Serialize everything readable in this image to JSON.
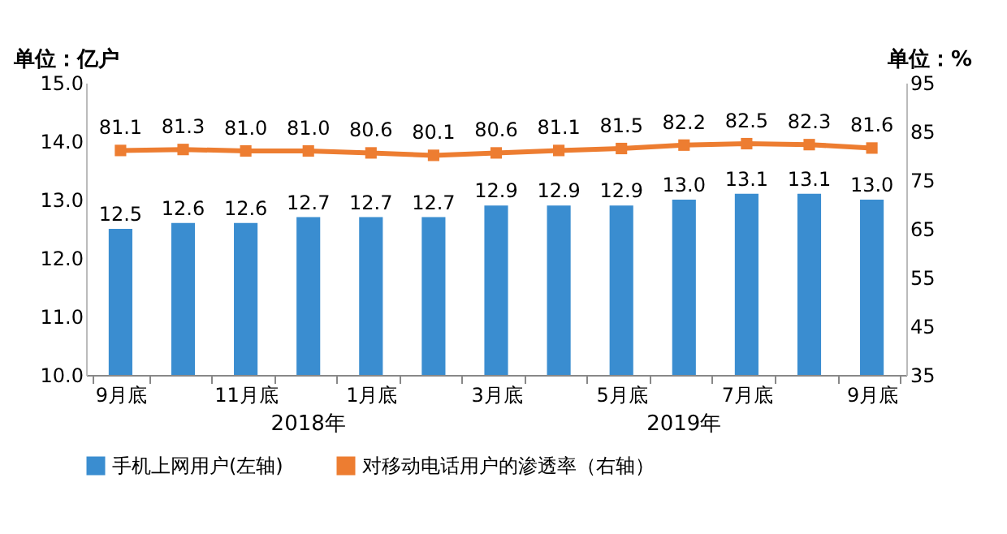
{
  "chart_data": {
    "type": "bar",
    "ylabel": "单位：亿户",
    "y2label": "单位：%",
    "categories": [
      "9月底",
      null,
      "11月底",
      null,
      "1月底",
      null,
      "3月底",
      null,
      "5月底",
      null,
      "7月底",
      null,
      "9月底"
    ],
    "series": [
      {
        "name": "手机上网用户(左轴)",
        "type": "bar",
        "color": "#3a8dd0",
        "values": [
          12.5,
          12.6,
          12.6,
          12.7,
          12.7,
          12.7,
          12.9,
          12.9,
          12.9,
          13.0,
          13.1,
          13.1,
          13.0
        ],
        "value_labels": [
          "12.5",
          "12.6",
          "12.6",
          "12.7",
          "12.7",
          "12.7",
          "12.9",
          "12.9",
          "12.9",
          "13.0",
          "13.1",
          "13.1",
          "13.0"
        ]
      },
      {
        "name": "对移动电话用户的渗透率（右轴）",
        "type": "line",
        "axis": "y2",
        "color": "#ed7d31",
        "marker": "square",
        "values": [
          81.1,
          81.3,
          81.0,
          81.0,
          80.6,
          80.1,
          80.6,
          81.1,
          81.5,
          82.2,
          82.5,
          82.3,
          81.6
        ],
        "value_labels": [
          "81.1",
          "81.3",
          "81.0",
          "81.0",
          "80.6",
          "80.1",
          "80.6",
          "81.1",
          "81.5",
          "82.2",
          "82.5",
          "82.3",
          "81.6"
        ]
      }
    ],
    "ylim": [
      10,
      15
    ],
    "yticks": [
      {
        "value": 10,
        "label": "10.0"
      },
      {
        "value": 11,
        "label": "11.0"
      },
      {
        "value": 12,
        "label": "12.0"
      },
      {
        "value": 13,
        "label": "13.0"
      },
      {
        "value": 14,
        "label": "14.0"
      },
      {
        "value": 15,
        "label": "15.0"
      }
    ],
    "y2lim": [
      35,
      95
    ],
    "y2ticks": [
      35,
      45,
      55,
      65,
      75,
      85,
      95
    ],
    "annotations": [
      "2018年",
      "2019年"
    ],
    "legend": "bottom",
    "grid": false
  }
}
